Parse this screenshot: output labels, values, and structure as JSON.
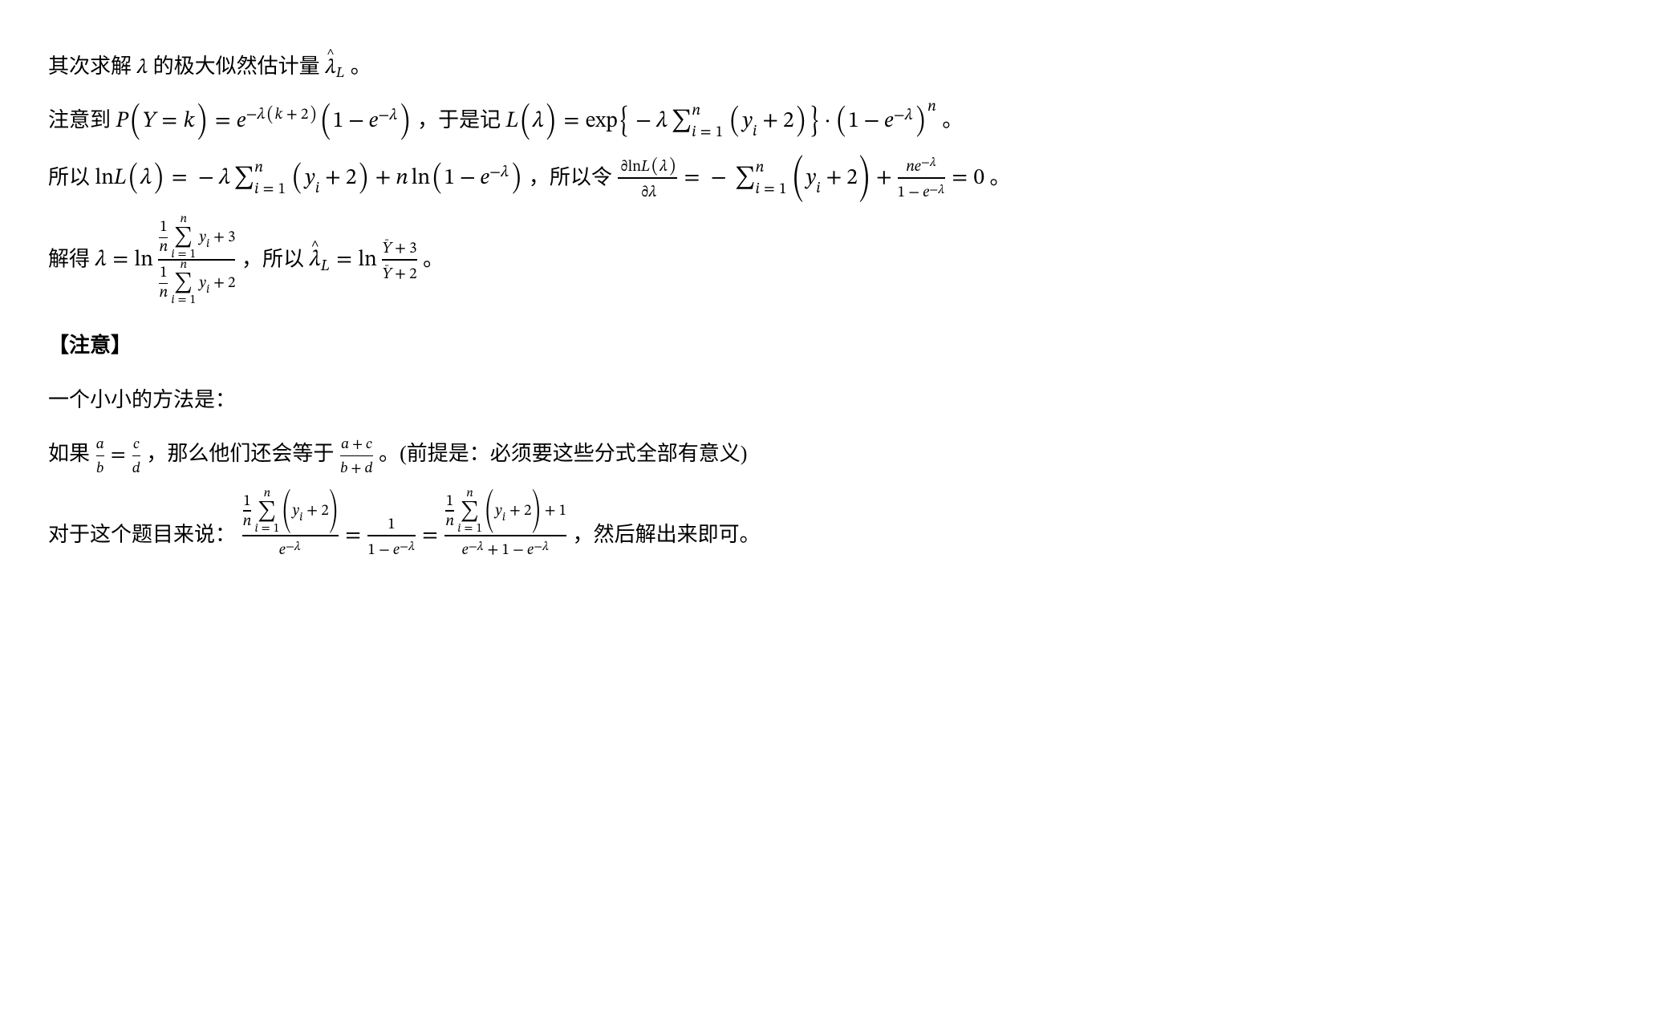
{
  "p1": {
    "pre": "其次求解 ",
    "mid": " 的极大似然估计量 ",
    "end": "。"
  },
  "p2": {
    "pre": "注意到 ",
    "mid1": "，于是记 ",
    "end": "。"
  },
  "p3": {
    "pre": "所以 ",
    "mid1": "，所以令 ",
    "end": "。"
  },
  "p4": {
    "pre": "解得 ",
    "mid1": "，所以 ",
    "end": "。"
  },
  "noteHead": "【注意】",
  "p5": "一个小小的方法是：",
  "p6": {
    "pre": "如果 ",
    "mid1": "，那么他们还会等于 ",
    "mid2": "。(前提是：必须要这些分式全部有意义)"
  },
  "p7": {
    "pre": "对于这个题目来说：",
    "end": "，然后解出来即可。"
  },
  "sym": {
    "lambda": "λ",
    "lambdaHatL": "λ̂_L",
    "Ybar": "Y̅"
  },
  "math": {
    "p1_lambda": "λ",
    "p1_lambdaHatL": "\\hat{λ}_L",
    "p2_eq1": "P(Y=k)=e^{-λ(k+2)}(1-e^{-λ})",
    "p2_eq2": "L(λ)=exp{-λΣ_{i=1}^{n}(y_i+2)}·(1-e^{-λ})^n",
    "p3_eq1": "ln L(λ)=-λΣ_{i=1}^{n}(y_i+2)+n ln(1-e^{-λ})",
    "p3_eq2": "∂ln L(λ)/∂λ = -Σ_{i=1}^{n}(y_i+2) + n e^{-λ}/(1-e^{-λ}) = 0",
    "p4_eq1": "λ = ln ( (1/n)Σ y_i + 3 ) / ( (1/n)Σ y_i + 2 )",
    "p4_eq2": "\\hat{λ}_L = ln (Ȳ+3)/(Ȳ+2)",
    "p6_eq1": "a/b = c/d",
    "p6_eq2": "(a+c)/(b+d)",
    "p7_eq": "((1/n)Σ(y_i+2))/e^{-λ} = 1/(1-e^{-λ}) = ((1/n)Σ(y_i+2)+1)/(e^{-λ}+1-e^{-λ})"
  },
  "style": {
    "fontFamily": "SimSun/Songti serif",
    "fontSizePx": 26,
    "textColor": "#000000",
    "backgroundColor": "#ffffff",
    "mathFont": "Cambria Math / STIX Two Math",
    "lineHeight": 1.9
  }
}
